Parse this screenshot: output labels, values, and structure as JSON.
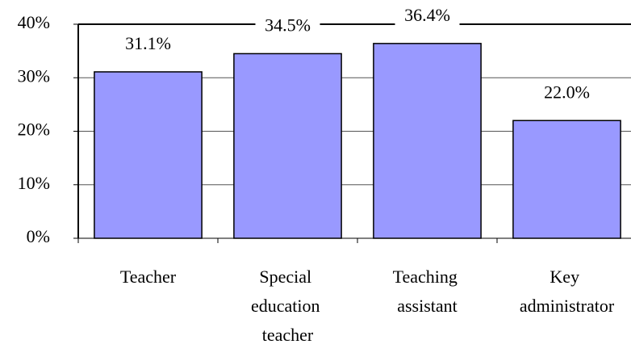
{
  "chart_data": {
    "type": "bar",
    "categories": [
      "Teacher",
      "Special education teacher",
      "Teaching assistant",
      "Key administrator"
    ],
    "values": [
      31.1,
      34.5,
      36.4,
      22.0
    ],
    "value_labels": [
      "31.1%",
      "34.5%",
      "36.4%",
      "22.0%"
    ],
    "color": "#9999ff",
    "ylim": [
      0,
      40
    ],
    "yticks": [
      {
        "value": 0,
        "label": "0%"
      },
      {
        "value": 10,
        "label": "10%"
      },
      {
        "value": 20,
        "label": "20%"
      },
      {
        "value": 30,
        "label": "30%"
      },
      {
        "value": 40,
        "label": "40%"
      }
    ],
    "grid": true
  }
}
